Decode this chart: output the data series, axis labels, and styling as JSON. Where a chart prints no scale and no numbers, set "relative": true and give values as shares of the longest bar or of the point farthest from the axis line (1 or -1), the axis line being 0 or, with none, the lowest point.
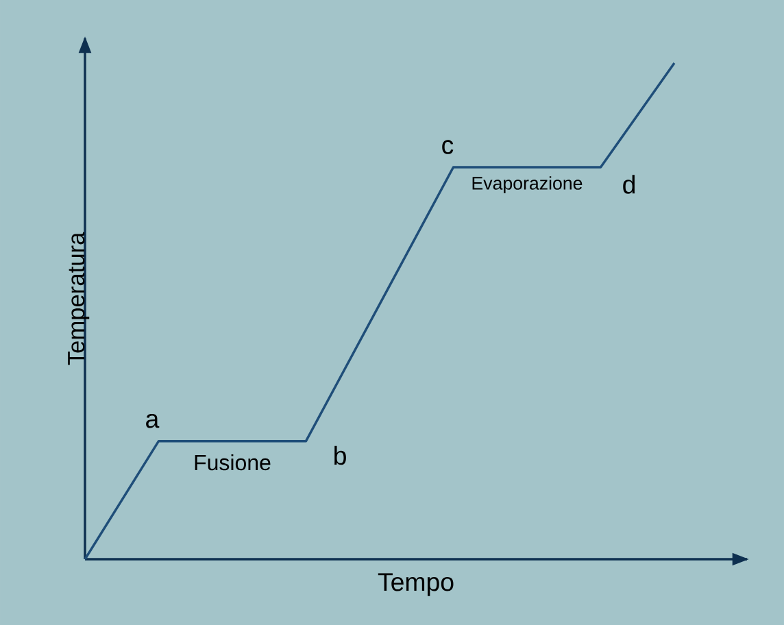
{
  "chart_data": {
    "type": "line",
    "relative": true,
    "xlabel": "Tempo",
    "ylabel": "Temperatura",
    "categories": [
      null,
      null,
      null,
      null,
      null,
      null,
      null,
      null,
      null
    ],
    "series": [
      {
        "color": "#1f4e79",
        "values": [
          0,
          0.238,
          0.238,
          0.238,
          0.514,
          0.79,
          0.79,
          0.79,
          1
        ]
      }
    ],
    "annotations": [
      "a",
      "Fusione",
      "b",
      "c",
      "Evaporazione",
      "d"
    ],
    "marker": "none",
    "line_style": "solid"
  }
}
